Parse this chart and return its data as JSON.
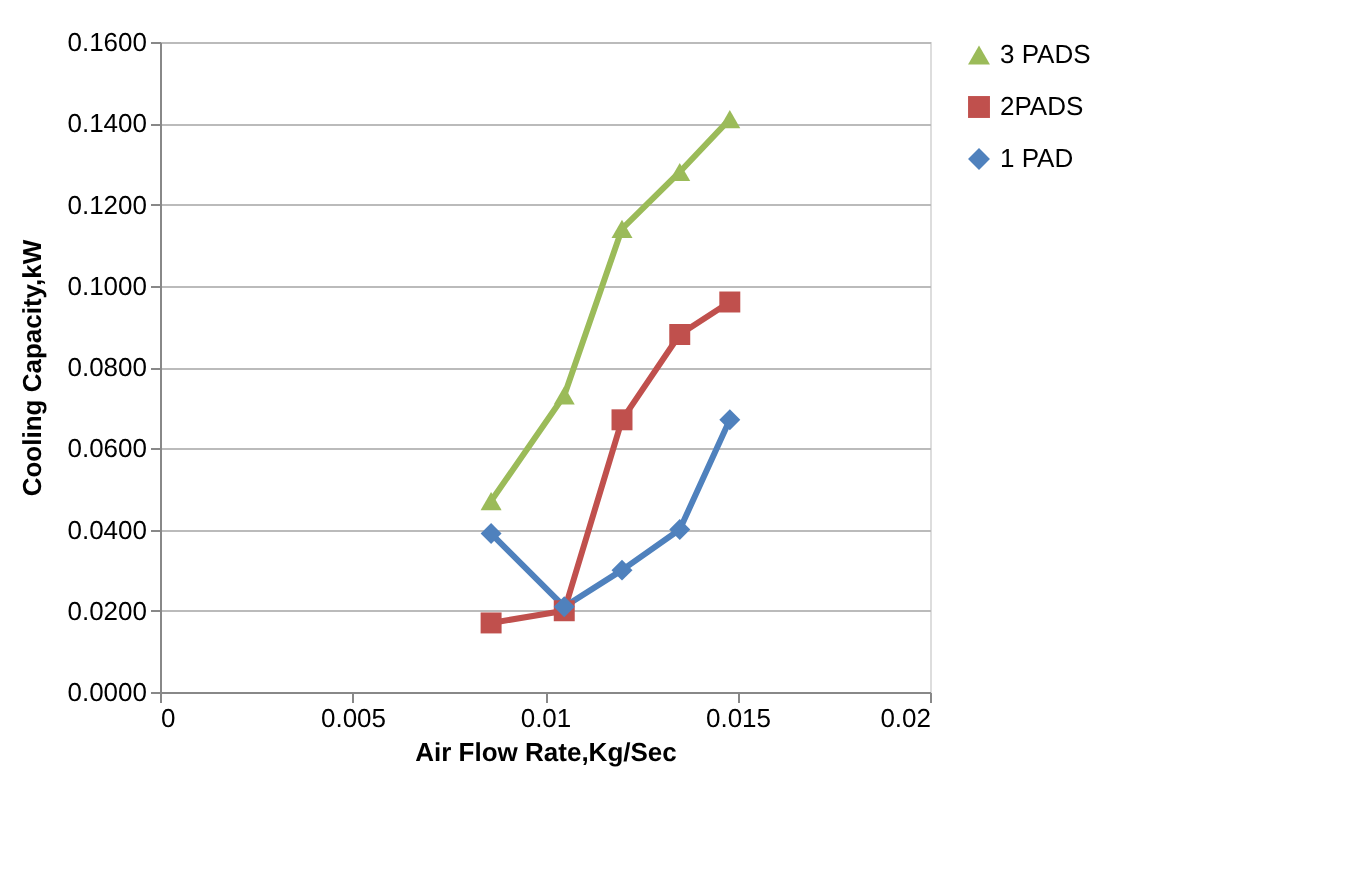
{
  "chart_data": {
    "type": "line",
    "xlabel": "Air Flow Rate,Kg/Sec",
    "ylabel": "Cooling Capacity,kW",
    "xlim": [
      0,
      0.02
    ],
    "xticks": [
      0,
      0.005,
      0.01,
      0.015,
      0.02
    ],
    "ylim": [
      0,
      0.16
    ],
    "yticks": [
      {
        "value": 0,
        "label": "0.0000"
      },
      {
        "value": 0.02,
        "label": "0.0200"
      },
      {
        "value": 0.04,
        "label": "0.0400"
      },
      {
        "value": 0.06,
        "label": "0.0600"
      },
      {
        "value": 0.08,
        "label": "0.0800"
      },
      {
        "value": 0.1,
        "label": "0.1000"
      },
      {
        "value": 0.12,
        "label": "0.1200"
      },
      {
        "value": 0.14,
        "label": "0.1400"
      },
      {
        "value": 0.16,
        "label": "0.1600"
      }
    ],
    "grid": "y",
    "legend": "right",
    "line_style": "solid",
    "x": [
      0.0086,
      0.0105,
      0.012,
      0.0135,
      0.0148
    ],
    "series": [
      {
        "name": "3 PADS",
        "color": "#9bbb59",
        "marker": "triangle",
        "values": [
          0.047,
          0.073,
          0.114,
          0.128,
          0.141
        ]
      },
      {
        "name": "2PADS",
        "color": "#c0504d",
        "marker": "square",
        "values": [
          0.017,
          0.02,
          0.067,
          0.088,
          0.096
        ]
      },
      {
        "name": "1 PAD",
        "color": "#4f81bd",
        "marker": "diamond",
        "values": [
          0.039,
          0.021,
          0.03,
          0.04,
          0.067
        ]
      }
    ]
  }
}
